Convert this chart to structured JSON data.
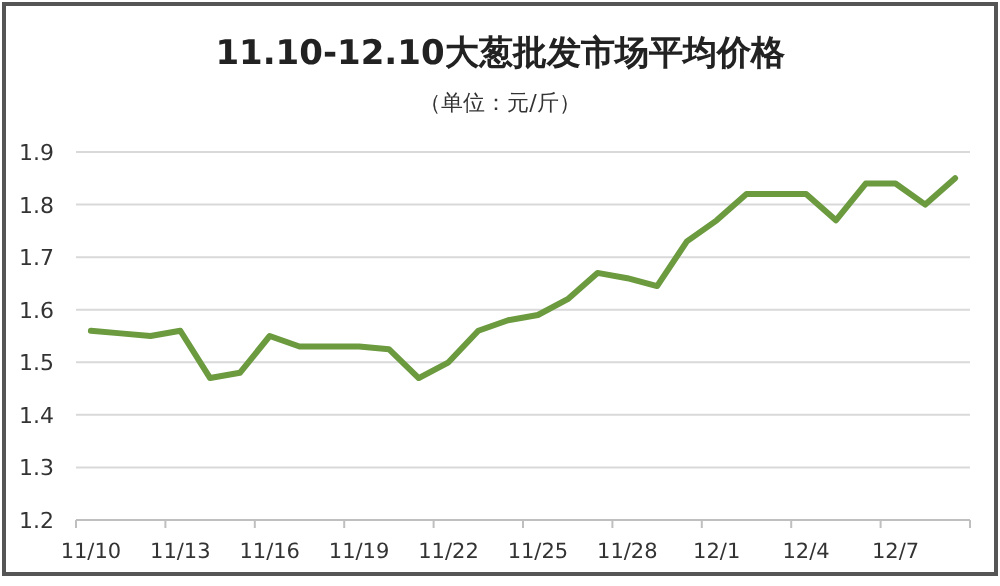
{
  "chart_data": {
    "type": "line",
    "title": "11.10-12.10大葱批发市场平均价格",
    "subtitle": "（单位：元/斤）",
    "categories": [
      "11/10",
      null,
      null,
      "11/13",
      null,
      null,
      "11/16",
      null,
      null,
      "11/19",
      null,
      null,
      "11/22",
      null,
      null,
      "11/25",
      null,
      null,
      "11/28",
      null,
      null,
      "12/1",
      null,
      null,
      "12/4",
      null,
      null,
      "12/7",
      null,
      null
    ],
    "values": [
      1.56,
      1.555,
      1.55,
      1.56,
      1.47,
      1.48,
      1.55,
      1.53,
      1.53,
      1.53,
      1.525,
      1.47,
      1.5,
      1.56,
      1.58,
      1.59,
      1.62,
      1.67,
      1.66,
      1.645,
      1.73,
      1.77,
      1.82,
      1.82,
      1.82,
      1.77,
      1.84,
      1.84,
      1.8,
      1.85
    ],
    "color": "#6b9a3f",
    "ylim": [
      1.2,
      1.9
    ],
    "yticks": [
      1.2,
      1.3,
      1.4,
      1.5,
      1.6,
      1.7,
      1.8,
      1.9
    ],
    "grid": "y"
  }
}
